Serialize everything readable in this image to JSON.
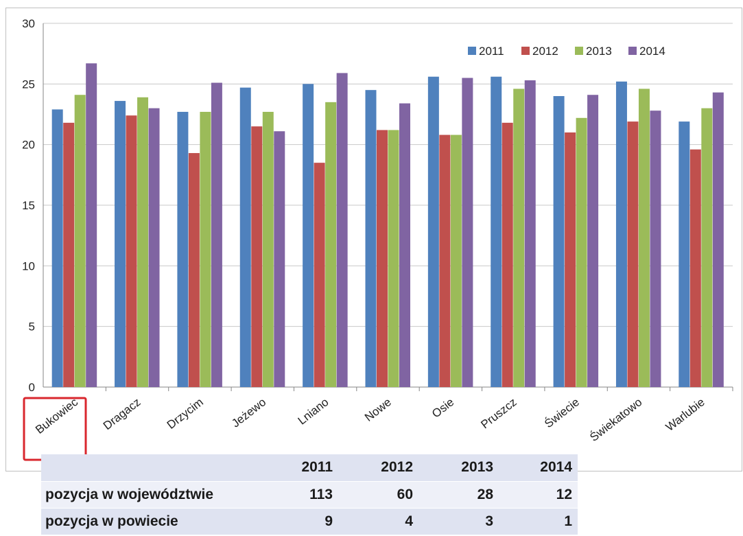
{
  "chart_data": {
    "type": "bar",
    "categories": [
      "Bukowiec",
      "Dragacz",
      "Drzycim",
      "Jeżewo",
      "Lniano",
      "Nowe",
      "Osie",
      "Pruszcz",
      "Świecie",
      "Świekatowo",
      "Warlubie"
    ],
    "series": [
      {
        "name": "2011",
        "color": "#4f81bd",
        "values": [
          22.9,
          23.6,
          22.7,
          24.7,
          25.0,
          24.5,
          25.6,
          25.6,
          24.0,
          25.2,
          21.9
        ]
      },
      {
        "name": "2012",
        "color": "#c0504d",
        "values": [
          21.8,
          22.4,
          19.3,
          21.5,
          18.5,
          21.2,
          20.8,
          21.8,
          21.0,
          21.9,
          19.6
        ]
      },
      {
        "name": "2013",
        "color": "#9bbb59",
        "values": [
          24.1,
          23.9,
          22.7,
          22.7,
          23.5,
          21.2,
          20.8,
          24.6,
          22.2,
          24.6,
          23.0
        ]
      },
      {
        "name": "2014",
        "color": "#8064a2",
        "values": [
          26.7,
          23.0,
          25.1,
          21.1,
          25.9,
          23.4,
          25.5,
          25.3,
          24.1,
          22.8,
          24.3
        ]
      }
    ],
    "yticks": [
      "0",
      "5",
      "10",
      "15",
      "20",
      "25",
      "30"
    ],
    "ylim": [
      0,
      30
    ],
    "grid": true,
    "legend": "top-right",
    "highlighted_category": "Bukowiec",
    "highlight_color": "#d9272e"
  },
  "table": {
    "headers": [
      "",
      "2011",
      "2012",
      "2013",
      "2014"
    ],
    "rows": [
      {
        "label": "pozycja w województwie",
        "values": [
          "113",
          "60",
          "28",
          "12"
        ]
      },
      {
        "label": "pozycja w powiecie",
        "values": [
          "9",
          "4",
          "3",
          "1"
        ]
      }
    ]
  }
}
